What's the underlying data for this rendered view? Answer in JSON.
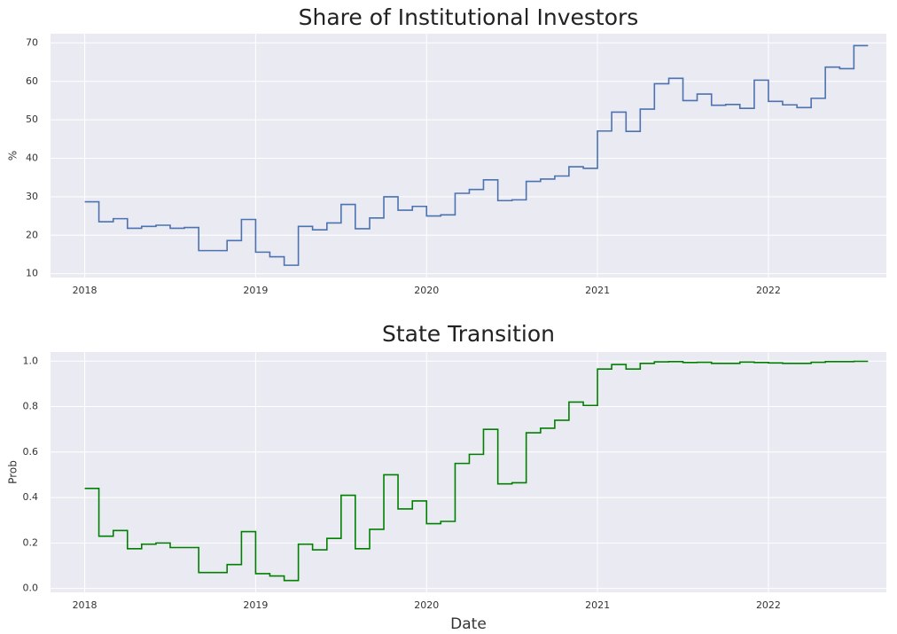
{
  "chart_data": [
    {
      "type": "step",
      "title": "Share of Institutional Investors",
      "y_label": "%",
      "x": [
        2018.0,
        2018.083,
        2018.167,
        2018.25,
        2018.333,
        2018.417,
        2018.5,
        2018.583,
        2018.667,
        2018.75,
        2018.833,
        2018.917,
        2019.0,
        2019.083,
        2019.167,
        2019.25,
        2019.333,
        2019.417,
        2019.5,
        2019.583,
        2019.667,
        2019.75,
        2019.833,
        2019.917,
        2020.0,
        2020.083,
        2020.167,
        2020.25,
        2020.333,
        2020.417,
        2020.5,
        2020.583,
        2020.667,
        2020.75,
        2020.833,
        2020.917,
        2021.0,
        2021.083,
        2021.167,
        2021.25,
        2021.333,
        2021.417,
        2021.5,
        2021.583,
        2021.667,
        2021.75,
        2021.833,
        2021.917,
        2022.0,
        2022.083,
        2022.167,
        2022.25,
        2022.333,
        2022.417,
        2022.5,
        2022.583
      ],
      "values": [
        28.7,
        23.5,
        24.3,
        21.8,
        22.3,
        22.6,
        21.8,
        22.0,
        16.0,
        16.0,
        18.6,
        24.1,
        15.6,
        14.4,
        12.2,
        22.3,
        21.4,
        23.2,
        28.0,
        21.7,
        24.5,
        30.0,
        26.5,
        27.5,
        25.0,
        25.3,
        30.9,
        31.9,
        34.4,
        29.0,
        29.2,
        34.0,
        34.6,
        35.4,
        37.8,
        37.4,
        47.1,
        52.0,
        47.0,
        52.8,
        59.4,
        60.8,
        55.0,
        56.7,
        53.8,
        54.0,
        53.0,
        60.3,
        54.8,
        53.9,
        53.2,
        55.6,
        63.7,
        63.3,
        69.3,
        69.3
      ],
      "color": "#4c72b0",
      "xlim": [
        2017.8,
        2022.69
      ],
      "xticks": [
        2018,
        2019,
        2020,
        2021,
        2022
      ],
      "ylim": [
        9,
        72.4
      ],
      "yticks": [
        10,
        20,
        30,
        40,
        50,
        60,
        70
      ],
      "grid": true
    },
    {
      "type": "step",
      "title": "State Transition",
      "y_label": "Prob",
      "x_label": "Date",
      "x": [
        2018.0,
        2018.083,
        2018.167,
        2018.25,
        2018.333,
        2018.417,
        2018.5,
        2018.583,
        2018.667,
        2018.75,
        2018.833,
        2018.917,
        2019.0,
        2019.083,
        2019.167,
        2019.25,
        2019.333,
        2019.417,
        2019.5,
        2019.583,
        2019.667,
        2019.75,
        2019.833,
        2019.917,
        2020.0,
        2020.083,
        2020.167,
        2020.25,
        2020.333,
        2020.417,
        2020.5,
        2020.583,
        2020.667,
        2020.75,
        2020.833,
        2020.917,
        2021.0,
        2021.083,
        2021.167,
        2021.25,
        2021.333,
        2021.417,
        2021.5,
        2021.583,
        2021.667,
        2021.75,
        2021.833,
        2021.917,
        2022.0,
        2022.083,
        2022.167,
        2022.25,
        2022.333,
        2022.417,
        2022.5,
        2022.583
      ],
      "values": [
        0.44,
        0.23,
        0.255,
        0.175,
        0.195,
        0.2,
        0.18,
        0.18,
        0.07,
        0.07,
        0.105,
        0.25,
        0.065,
        0.055,
        0.035,
        0.195,
        0.17,
        0.22,
        0.41,
        0.175,
        0.26,
        0.5,
        0.35,
        0.385,
        0.285,
        0.295,
        0.55,
        0.59,
        0.7,
        0.46,
        0.465,
        0.685,
        0.705,
        0.74,
        0.82,
        0.805,
        0.965,
        0.985,
        0.965,
        0.99,
        0.997,
        0.998,
        0.994,
        0.995,
        0.99,
        0.99,
        0.996,
        0.994,
        0.992,
        0.99,
        0.99,
        0.995,
        0.998,
        0.998,
        0.999,
        0.999
      ],
      "color": "#008000",
      "xlim": [
        2017.8,
        2022.69
      ],
      "xticks": [
        2018,
        2019,
        2020,
        2021,
        2022
      ],
      "ylim": [
        -0.017,
        1.04
      ],
      "yticks": [
        {
          "value": 0,
          "label": "0.0"
        },
        0.2,
        0.4,
        0.6,
        0.8,
        {
          "value": 1,
          "label": "1.0"
        }
      ],
      "grid": true
    }
  ]
}
